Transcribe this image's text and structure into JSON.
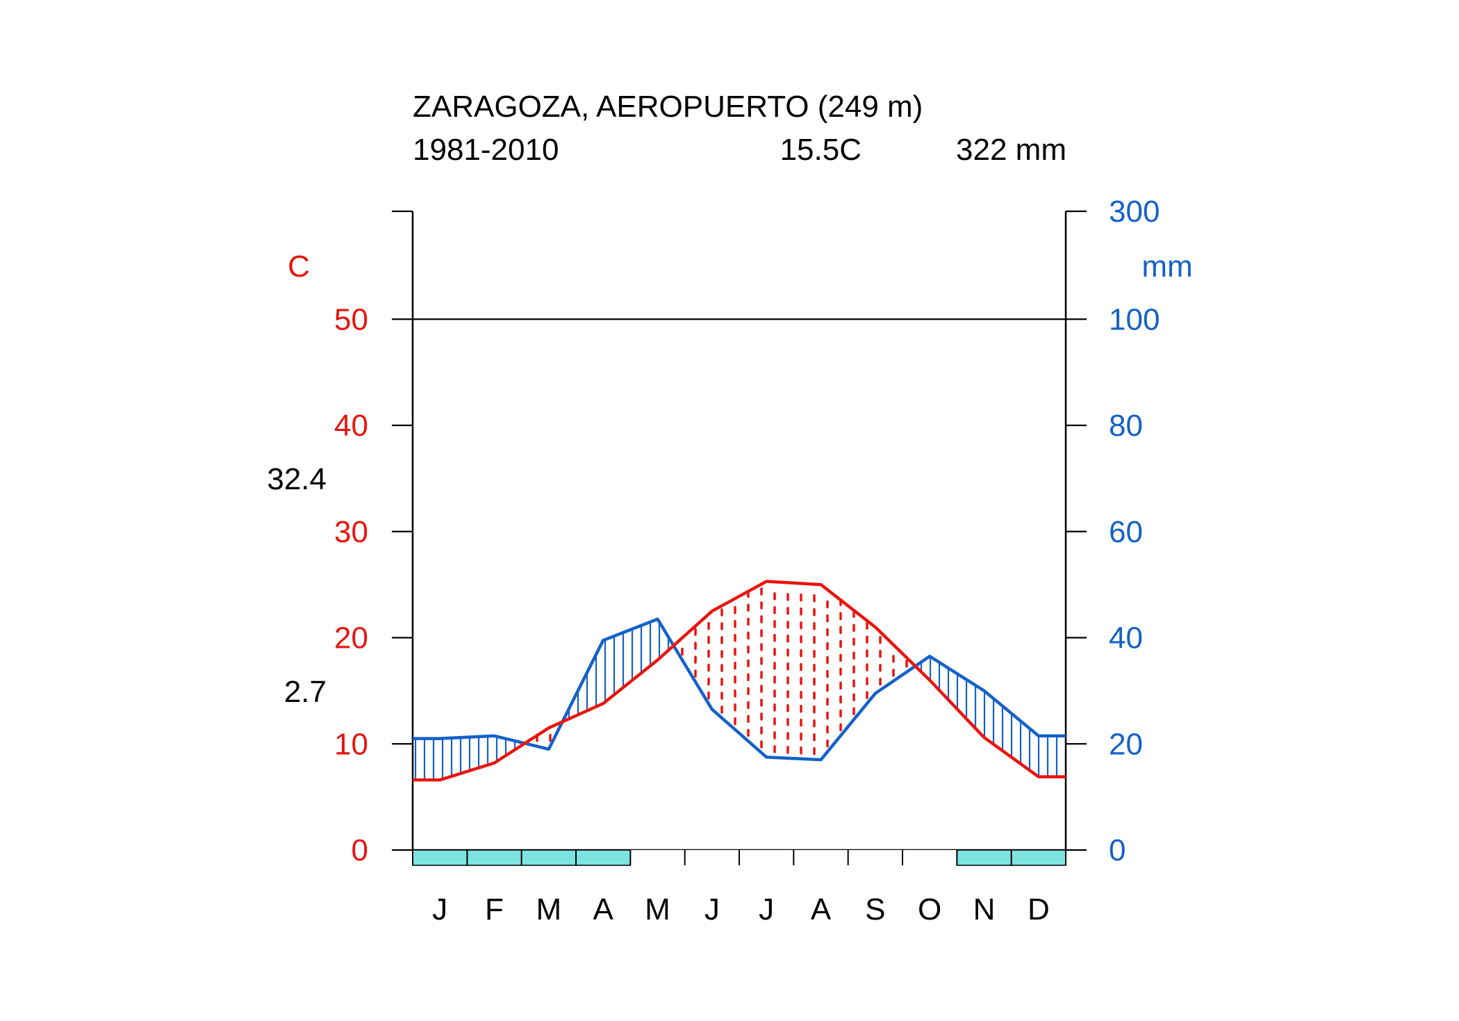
{
  "header": {
    "station": "ZARAGOZA, AEROPUERTO (249 m)",
    "period": "1981-2010",
    "mean_temp": "15.5C",
    "annual_precip": "322 mm"
  },
  "chart_data": {
    "type": "line",
    "subtype": "walter-lieth climate diagram",
    "title": "ZARAGOZA, AEROPUERTO (249 m)",
    "categories": [
      "J",
      "F",
      "M",
      "A",
      "M",
      "J",
      "J",
      "A",
      "S",
      "O",
      "N",
      "D"
    ],
    "series": [
      {
        "axis": "left",
        "values": [
          6.6,
          8.2,
          11.5,
          13.8,
          17.9,
          22.5,
          25.3,
          25.0,
          21.0,
          16.0,
          10.6,
          6.9
        ]
      },
      {
        "axis": "right",
        "values": [
          21.0,
          21.5,
          19.0,
          39.5,
          43.5,
          26.5,
          17.5,
          17.0,
          29.5,
          36.5,
          30.0,
          21.5
        ]
      }
    ],
    "left_axis": {
      "label": "C",
      "ylim": [
        0,
        60
      ],
      "ticks": [
        0,
        10,
        20,
        30,
        40,
        50
      ]
    },
    "right_axis": {
      "label": "mm",
      "ticks": [
        0,
        20,
        40,
        60,
        80,
        100,
        300
      ],
      "scale": "2 mm per °C up to 100 mm, compressed above 100 mm"
    },
    "side_labels": {
      "max_temp_warmest_month": "32.4",
      "min_temp_coldest_month": "2.7"
    },
    "frost_months": {
      "months": [
        "J",
        "F",
        "M",
        "A",
        "N",
        "D"
      ],
      "flags": [
        1,
        1,
        1,
        1,
        0,
        0,
        0,
        0,
        0,
        0,
        1,
        1
      ]
    },
    "colors": {
      "temperature": "#e8150e",
      "precipitation": "#1461c8",
      "frost_bar": "#7de3e0",
      "axis": "#000000"
    }
  }
}
